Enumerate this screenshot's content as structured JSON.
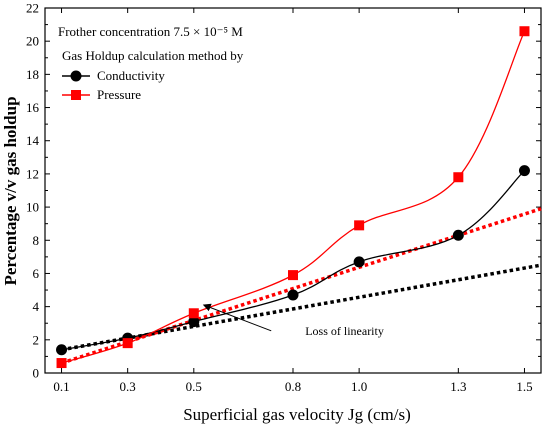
{
  "chart_data": {
    "type": "line",
    "title": "",
    "xlabel": "Superficial gas velocity Jg (cm/s)",
    "ylabel": "Percentage  v/v gas holdup",
    "x_tick_labels": [
      "0.1",
      "0.3",
      "0.5",
      "0.8",
      "1.0",
      "1.3",
      "1.5"
    ],
    "x_ticks": [
      0.1,
      0.3,
      0.5,
      0.8,
      1.0,
      1.3,
      1.5
    ],
    "xlim": [
      0.05,
      1.55
    ],
    "ylim": [
      0,
      22
    ],
    "y_ticks": [
      0,
      2,
      4,
      6,
      8,
      10,
      12,
      14,
      16,
      18,
      20,
      22
    ],
    "grid": false,
    "legend_position": "top-left",
    "annotation_concentration": "Frother concentration 7.5 × 10⁻⁵ M",
    "legend_title": "Gas Holdup calculation method by",
    "series": [
      {
        "name": "Conductivity",
        "marker": "circle",
        "color": "#000000",
        "x": [
          0.1,
          0.3,
          0.5,
          0.8,
          1.0,
          1.3,
          1.5
        ],
        "values": [
          1.4,
          2.1,
          3.1,
          4.7,
          6.7,
          8.3,
          12.2
        ],
        "fit_line_end": [
          1.55,
          6.5
        ]
      },
      {
        "name": "Pressure",
        "marker": "square",
        "color": "#ff0000",
        "x": [
          0.1,
          0.3,
          0.5,
          0.8,
          1.0,
          1.3,
          1.5
        ],
        "values": [
          0.6,
          1.8,
          3.6,
          5.9,
          8.9,
          11.8,
          20.6
        ],
        "fit_line_end": [
          1.55,
          9.9
        ]
      }
    ],
    "annotations": [
      {
        "text": "Loss of linearity",
        "arrow_to": [
          0.53,
          4.1
        ],
        "text_at": [
          0.97,
          2.3
        ]
      }
    ]
  }
}
